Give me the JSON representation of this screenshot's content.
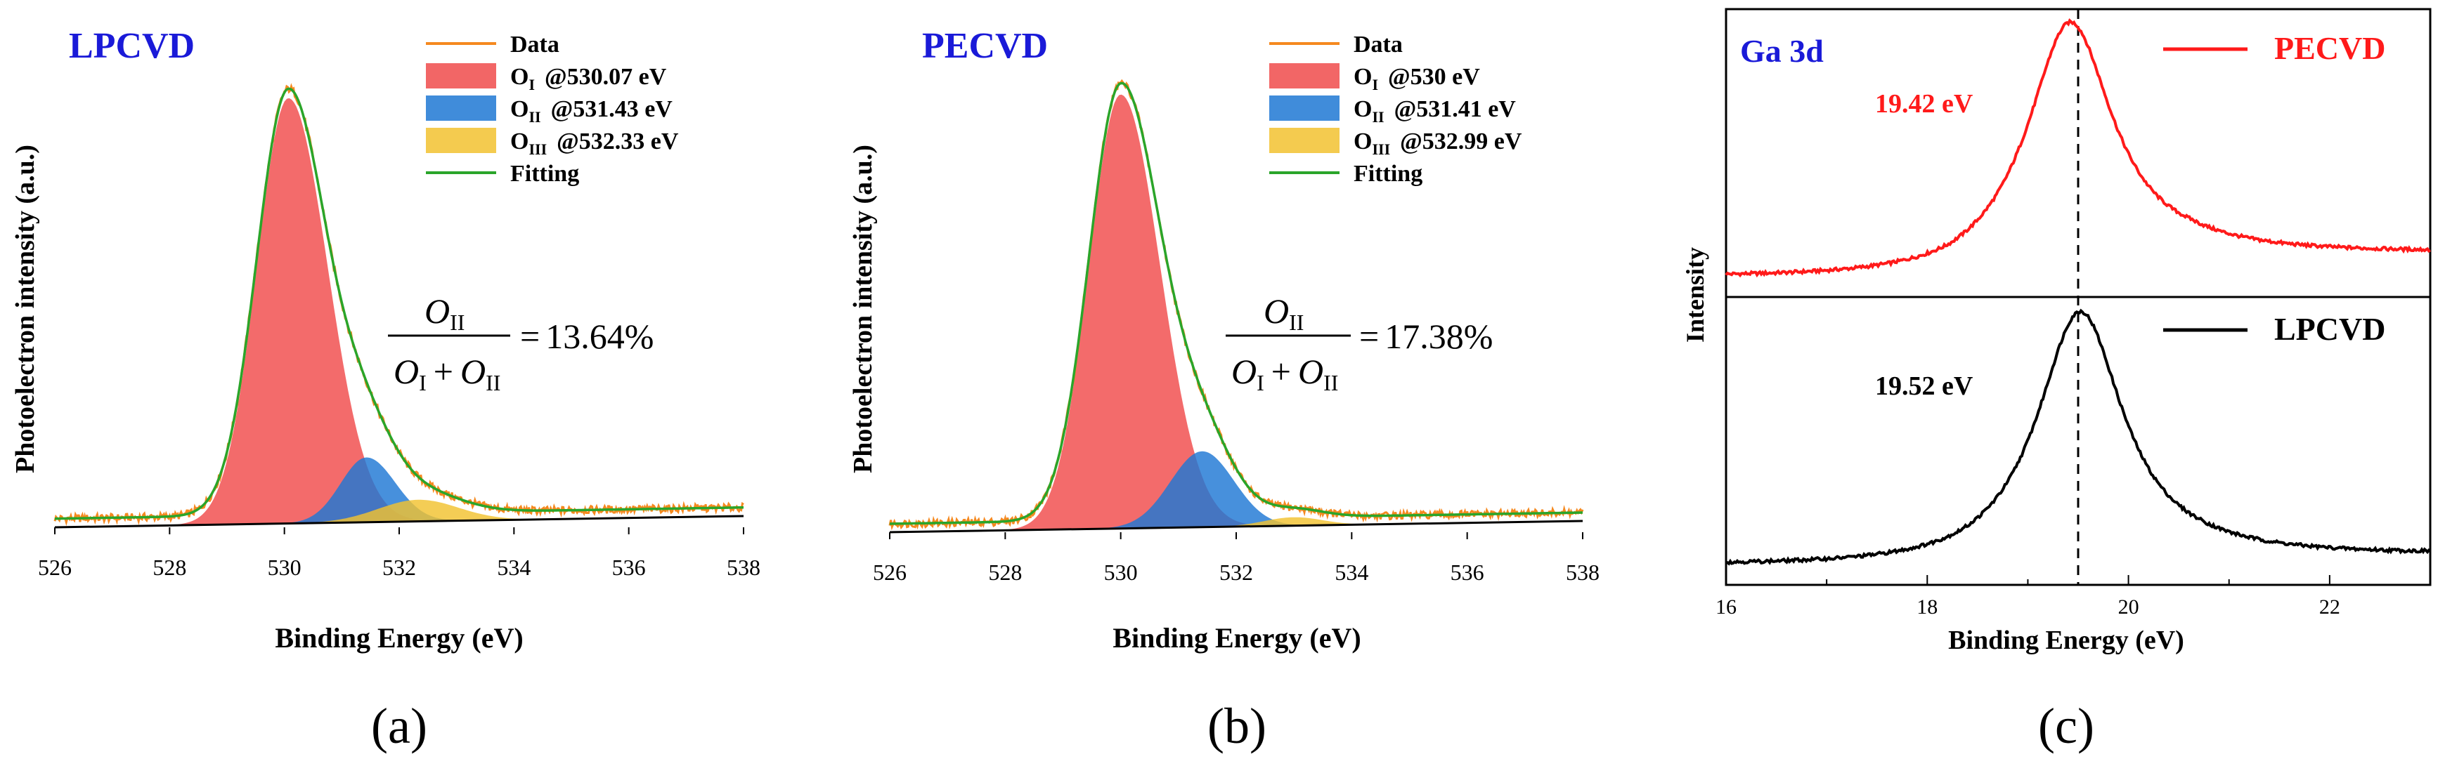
{
  "chart_data": [
    {
      "id": "a",
      "type": "area",
      "panel_label": "(a)",
      "title": "LPCVD",
      "xlabel": "Binding Energy (eV)",
      "ylabel": "Photoelectron intensity (a.u.)",
      "xlim": [
        526,
        538
      ],
      "ylim": [
        0,
        1.0
      ],
      "xticks": [
        526,
        528,
        530,
        532,
        534,
        536,
        538
      ],
      "baseline": 0.02,
      "peaks": [
        {
          "name": "O_I",
          "center": 530.07,
          "amplitude": 0.985,
          "sigma_left": 0.55,
          "sigma_right": 0.68,
          "color": "#f04b4b"
        },
        {
          "name": "O_II",
          "center": 531.43,
          "amplitude": 0.15,
          "sigma_left": 0.45,
          "sigma_right": 0.5,
          "color": "#1e78d4"
        },
        {
          "name": "O_III",
          "center": 532.33,
          "amplitude": 0.05,
          "sigma_left": 0.7,
          "sigma_right": 0.7,
          "color": "#f2c230"
        }
      ],
      "legend": [
        {
          "key": "data",
          "main": "Data",
          "sub": "",
          "suffix": "",
          "color": "#f5891f"
        },
        {
          "key": "o1",
          "main": "O",
          "sub": "I",
          "suffix": "@530.07 eV",
          "color": "#f04b4b"
        },
        {
          "key": "o2",
          "main": "O",
          "sub": "II",
          "suffix": "@531.43 eV",
          "color": "#1e78d4"
        },
        {
          "key": "o3",
          "main": "O",
          "sub": "III",
          "suffix": "@532.33 eV",
          "color": "#f2c230"
        },
        {
          "key": "fit",
          "main": "Fitting",
          "sub": "",
          "suffix": "",
          "color": "#2aa52a"
        }
      ],
      "ratio": {
        "numerator": "O",
        "numerator_sub": "II",
        "denominator_left": "O",
        "denominator_left_sub": "I",
        "plus": "+",
        "denominator_right": "O",
        "denominator_right_sub": "II",
        "equals": "=",
        "value": "13.64%"
      }
    },
    {
      "id": "b",
      "type": "area",
      "panel_label": "(b)",
      "title": "PECVD",
      "xlabel": "Binding Energy (eV)",
      "ylabel": "Photoelectron intensity (a.u.)",
      "xlim": [
        526,
        538
      ],
      "ylim": [
        0,
        1.0
      ],
      "xticks": [
        526,
        528,
        530,
        532,
        534,
        536,
        538
      ],
      "baseline": 0.02,
      "peaks": [
        {
          "name": "O_I",
          "center": 530.0,
          "amplitude": 1.03,
          "sigma_left": 0.55,
          "sigma_right": 0.68,
          "color": "#f04b4b"
        },
        {
          "name": "O_II",
          "center": 531.41,
          "amplitude": 0.18,
          "sigma_left": 0.55,
          "sigma_right": 0.55,
          "color": "#1e78d4"
        },
        {
          "name": "O_III",
          "center": 532.99,
          "amplitude": 0.02,
          "sigma_left": 0.5,
          "sigma_right": 0.5,
          "color": "#f2c230"
        }
      ],
      "legend": [
        {
          "key": "data",
          "main": "Data",
          "sub": "",
          "suffix": "",
          "color": "#f5891f"
        },
        {
          "key": "o1",
          "main": "O",
          "sub": "I",
          "suffix": "@530 eV",
          "color": "#f04b4b"
        },
        {
          "key": "o2",
          "main": "O",
          "sub": "II",
          "suffix": "@531.41 eV",
          "color": "#1e78d4"
        },
        {
          "key": "o3",
          "main": "O",
          "sub": "III",
          "suffix": "@532.99 eV",
          "color": "#f2c230"
        },
        {
          "key": "fit",
          "main": "Fitting",
          "sub": "",
          "suffix": "",
          "color": "#2aa52a"
        }
      ],
      "ratio": {
        "numerator": "O",
        "numerator_sub": "II",
        "denominator_left": "O",
        "denominator_left_sub": "I",
        "plus": "+",
        "denominator_right": "O",
        "denominator_right_sub": "II",
        "equals": "=",
        "value": "17.38%"
      }
    },
    {
      "id": "c",
      "type": "line",
      "panel_label": "(c)",
      "title": "Ga 3d",
      "xlabel": "Binding Energy (eV)",
      "ylabel": "Intensity",
      "xlim": [
        16,
        23
      ],
      "xticks": [
        16,
        18,
        20,
        22
      ],
      "reference_line_x": 19.5,
      "series": [
        {
          "name": "PECVD",
          "peak": 19.42,
          "annotation": "19.42 eV",
          "color": "#ff1a1a",
          "amplitude": 0.88,
          "baseline_left": 0.08,
          "baseline_right": 0.17
        },
        {
          "name": "LPCVD",
          "peak": 19.52,
          "annotation": "19.52 eV",
          "color": "#000000",
          "amplitude": 0.9,
          "baseline_left": 0.08,
          "baseline_right": 0.12
        }
      ]
    }
  ]
}
